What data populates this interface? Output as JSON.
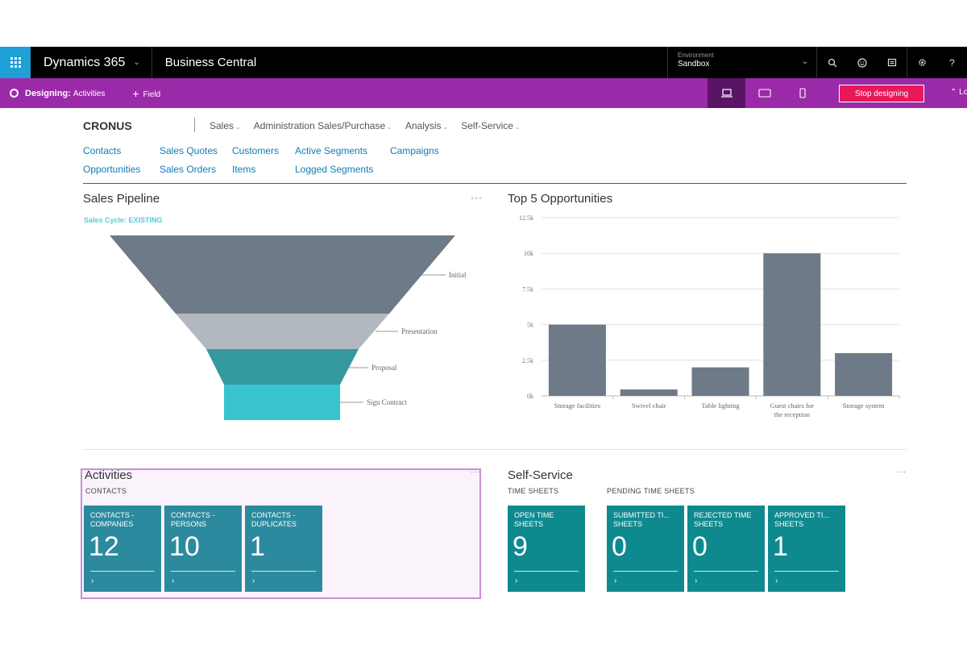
{
  "topbar": {
    "product": "Dynamics 365",
    "app_name": "Business Central",
    "environment_label": "Environment",
    "environment_value": "Sandbox",
    "icons": [
      "app-launcher-icon",
      "search-icon",
      "smiley-icon",
      "chat-icon",
      "gear-icon",
      "help-icon"
    ],
    "help_glyph": "?"
  },
  "designer": {
    "prefix": "Designing:",
    "page": "Activities",
    "add_field": "Field",
    "stop_label": "Stop designing",
    "collapse_label": "Lo",
    "devices": [
      "desktop",
      "tablet",
      "phone"
    ]
  },
  "nav": {
    "company": "CRONUS",
    "menus": [
      "Sales",
      "Administration Sales/Purchase",
      "Analysis",
      "Self-Service"
    ],
    "links": [
      "Contacts",
      "Sales Quotes",
      "Customers",
      "Active Segments",
      "Campaigns",
      "Opportunities",
      "Sales Orders",
      "Items",
      "Logged Segments"
    ]
  },
  "pipeline": {
    "title": "Sales Pipeline",
    "more": "···",
    "cycle": "Sales Cycle: EXISTING",
    "stages": [
      {
        "name": "Initial",
        "color": "#6f7a88"
      },
      {
        "name": "Presentation",
        "color": "#b2b8bf"
      },
      {
        "name": "Proposal",
        "color": "#33999e"
      },
      {
        "name": "Sign Contract",
        "color": "#39c3cf"
      }
    ]
  },
  "chart_data": {
    "type": "bar",
    "title": "Top 5 Opportunities",
    "categories": [
      "Storage facilities",
      "Swivel chair",
      "Table lighting",
      "Guest chairs for the reception",
      "Storage system"
    ],
    "values": [
      5000,
      450,
      2000,
      10000,
      3000
    ],
    "yticks": [
      "0k",
      "2.5k",
      "5k",
      "7.5k",
      "10k",
      "12.5k"
    ],
    "ylim": [
      0,
      12500
    ],
    "grid": true,
    "bar_color": "#6f7a88"
  },
  "activities": {
    "title": "Activities",
    "more": "···",
    "section": "CONTACTS",
    "tiles": [
      {
        "label": "CONTACTS - COMPANIES",
        "value": "12"
      },
      {
        "label": "CONTACTS - PERSONS",
        "value": "10"
      },
      {
        "label": "CONTACTS - DUPLICATES",
        "value": "1"
      }
    ],
    "arrow": "›"
  },
  "selfservice": {
    "title": "Self-Service",
    "more": "···",
    "sections": [
      "TIME SHEETS",
      "PENDING TIME SHEETS"
    ],
    "tiles": [
      {
        "label": "OPEN TIME SHEETS",
        "value": "9"
      },
      {
        "label": "SUBMITTED TI... SHEETS",
        "value": "0"
      },
      {
        "label": "REJECTED TIME SHEETS",
        "value": "0"
      },
      {
        "label": "APPROVED TI... SHEETS",
        "value": "1"
      }
    ],
    "arrow": "›"
  }
}
